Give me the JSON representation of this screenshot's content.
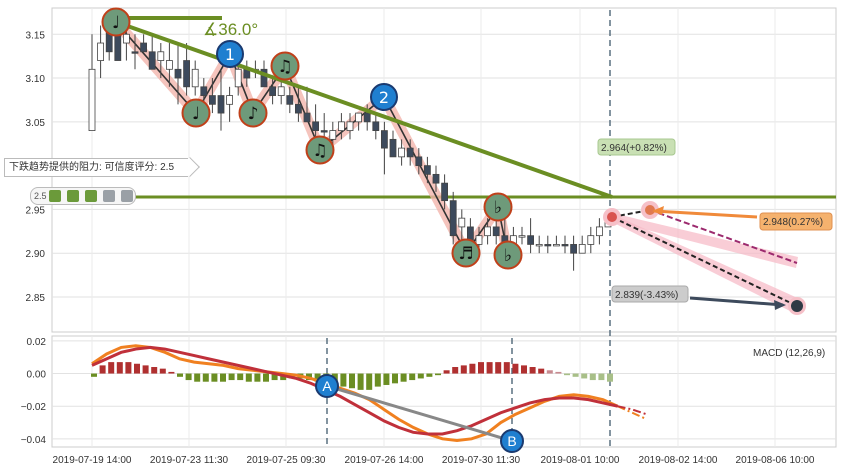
{
  "chart_data": {
    "type": "candlestick",
    "price_panel": {
      "y_ticks": [
        2.85,
        2.9,
        2.95,
        3.05,
        3.1,
        3.15
      ],
      "ylim": [
        2.81,
        3.18
      ],
      "candles": [
        {
          "o": 3.04,
          "h": 3.15,
          "l": 3.04,
          "c": 3.11,
          "bull": true
        },
        {
          "o": 3.12,
          "h": 3.16,
          "l": 3.1,
          "c": 3.14,
          "bull": true
        },
        {
          "o": 3.16,
          "h": 3.17,
          "l": 3.12,
          "c": 3.13,
          "bull": false
        },
        {
          "o": 3.15,
          "h": 3.17,
          "l": 3.12,
          "c": 3.12,
          "bull": false
        },
        {
          "o": 3.14,
          "h": 3.16,
          "l": 3.12,
          "c": 3.15,
          "bull": true
        },
        {
          "o": 3.13,
          "h": 3.15,
          "l": 3.11,
          "c": 3.13,
          "bull": false
        },
        {
          "o": 3.14,
          "h": 3.15,
          "l": 3.13,
          "c": 3.13,
          "bull": false
        },
        {
          "o": 3.13,
          "h": 3.15,
          "l": 3.11,
          "c": 3.11,
          "bull": false
        },
        {
          "o": 3.12,
          "h": 3.14,
          "l": 3.1,
          "c": 3.13,
          "bull": true
        },
        {
          "o": 3.11,
          "h": 3.14,
          "l": 3.09,
          "c": 3.12,
          "bull": true
        },
        {
          "o": 3.11,
          "h": 3.14,
          "l": 3.07,
          "c": 3.1,
          "bull": false
        },
        {
          "o": 3.12,
          "h": 3.14,
          "l": 3.08,
          "c": 3.09,
          "bull": false
        },
        {
          "o": 3.09,
          "h": 3.12,
          "l": 3.08,
          "c": 3.11,
          "bull": true
        },
        {
          "o": 3.09,
          "h": 3.1,
          "l": 3.06,
          "c": 3.08,
          "bull": false
        },
        {
          "o": 3.08,
          "h": 3.1,
          "l": 3.06,
          "c": 3.07,
          "bull": false
        },
        {
          "o": 3.08,
          "h": 3.11,
          "l": 3.04,
          "c": 3.06,
          "bull": false
        },
        {
          "o": 3.07,
          "h": 3.09,
          "l": 3.05,
          "c": 3.08,
          "bull": true
        },
        {
          "o": 3.09,
          "h": 3.12,
          "l": 3.08,
          "c": 3.11,
          "bull": true
        },
        {
          "o": 3.11,
          "h": 3.12,
          "l": 3.09,
          "c": 3.1,
          "bull": false
        },
        {
          "o": 3.11,
          "h": 3.12,
          "l": 3.1,
          "c": 3.11,
          "bull": true
        },
        {
          "o": 3.11,
          "h": 3.12,
          "l": 3.09,
          "c": 3.09,
          "bull": false
        },
        {
          "o": 3.09,
          "h": 3.1,
          "l": 3.07,
          "c": 3.08,
          "bull": false
        },
        {
          "o": 3.08,
          "h": 3.1,
          "l": 3.07,
          "c": 3.09,
          "bull": true
        },
        {
          "o": 3.08,
          "h": 3.09,
          "l": 3.06,
          "c": 3.07,
          "bull": false
        },
        {
          "o": 3.07,
          "h": 3.09,
          "l": 3.05,
          "c": 3.06,
          "bull": false
        },
        {
          "o": 3.06,
          "h": 3.09,
          "l": 3.05,
          "c": 3.05,
          "bull": false
        },
        {
          "o": 3.05,
          "h": 3.07,
          "l": 3.03,
          "c": 3.04,
          "bull": false
        },
        {
          "o": 3.04,
          "h": 3.06,
          "l": 3.03,
          "c": 3.04,
          "bull": false
        },
        {
          "o": 3.03,
          "h": 3.05,
          "l": 3.02,
          "c": 3.04,
          "bull": true
        },
        {
          "o": 3.04,
          "h": 3.06,
          "l": 3.03,
          "c": 3.05,
          "bull": true
        },
        {
          "o": 3.04,
          "h": 3.06,
          "l": 3.03,
          "c": 3.05,
          "bull": true
        },
        {
          "o": 3.05,
          "h": 3.06,
          "l": 3.04,
          "c": 3.06,
          "bull": true
        },
        {
          "o": 3.06,
          "h": 3.07,
          "l": 3.04,
          "c": 3.05,
          "bull": false
        },
        {
          "o": 3.05,
          "h": 3.06,
          "l": 3.03,
          "c": 3.04,
          "bull": false
        },
        {
          "o": 3.04,
          "h": 3.05,
          "l": 2.99,
          "c": 3.02,
          "bull": false
        },
        {
          "o": 3.03,
          "h": 3.04,
          "l": 3.01,
          "c": 3.01,
          "bull": false
        },
        {
          "o": 3.01,
          "h": 3.03,
          "l": 3.0,
          "c": 3.02,
          "bull": true
        },
        {
          "o": 3.02,
          "h": 3.03,
          "l": 3.0,
          "c": 3.01,
          "bull": false
        },
        {
          "o": 3.01,
          "h": 3.02,
          "l": 2.99,
          "c": 3.0,
          "bull": false
        },
        {
          "o": 3.0,
          "h": 3.01,
          "l": 2.98,
          "c": 2.99,
          "bull": false
        },
        {
          "o": 2.99,
          "h": 3.0,
          "l": 2.97,
          "c": 2.98,
          "bull": false
        },
        {
          "o": 2.98,
          "h": 2.99,
          "l": 2.95,
          "c": 2.96,
          "bull": false
        },
        {
          "o": 2.96,
          "h": 2.97,
          "l": 2.91,
          "c": 2.92,
          "bull": false
        },
        {
          "o": 2.93,
          "h": 2.95,
          "l": 2.91,
          "c": 2.94,
          "bull": true
        },
        {
          "o": 2.93,
          "h": 2.94,
          "l": 2.9,
          "c": 2.91,
          "bull": false
        },
        {
          "o": 2.91,
          "h": 2.93,
          "l": 2.9,
          "c": 2.92,
          "bull": true
        },
        {
          "o": 2.92,
          "h": 2.94,
          "l": 2.91,
          "c": 2.93,
          "bull": true
        },
        {
          "o": 2.93,
          "h": 2.95,
          "l": 2.91,
          "c": 2.92,
          "bull": false
        },
        {
          "o": 2.92,
          "h": 2.94,
          "l": 2.91,
          "c": 2.91,
          "bull": false
        },
        {
          "o": 2.91,
          "h": 2.93,
          "l": 2.9,
          "c": 2.92,
          "bull": true
        },
        {
          "o": 2.92,
          "h": 2.93,
          "l": 2.91,
          "c": 2.92,
          "bull": true
        },
        {
          "o": 2.92,
          "h": 2.94,
          "l": 2.9,
          "c": 2.91,
          "bull": false
        },
        {
          "o": 2.91,
          "h": 2.92,
          "l": 2.9,
          "c": 2.91,
          "bull": true
        },
        {
          "o": 2.91,
          "h": 2.92,
          "l": 2.9,
          "c": 2.91,
          "bull": false
        },
        {
          "o": 2.91,
          "h": 2.92,
          "l": 2.91,
          "c": 2.91,
          "bull": true
        },
        {
          "o": 2.91,
          "h": 2.92,
          "l": 2.9,
          "c": 2.91,
          "bull": false
        },
        {
          "o": 2.91,
          "h": 2.92,
          "l": 2.88,
          "c": 2.9,
          "bull": false
        },
        {
          "o": 2.9,
          "h": 2.92,
          "l": 2.9,
          "c": 2.91,
          "bull": true
        },
        {
          "o": 2.91,
          "h": 2.93,
          "l": 2.9,
          "c": 2.92,
          "bull": true
        },
        {
          "o": 2.92,
          "h": 2.94,
          "l": 2.91,
          "c": 2.93,
          "bull": true
        },
        {
          "o": 2.93,
          "h": 2.95,
          "l": 2.93,
          "c": 2.94,
          "bull": true
        }
      ],
      "horizontal_level": 2.96,
      "resistance_note": "下跌趋势提供的阻力: 可信度评分: 2.5",
      "score_strip_label": "2.5",
      "angle_label": "∡36.0°",
      "callouts": [
        {
          "text": "2.964(+0.82%)",
          "bg": "#c9e0b4"
        },
        {
          "text": "2.948(0.27%)",
          "bg": "#f5b26e"
        },
        {
          "text": "2.839(-3.43%)",
          "bg": "#cccccc"
        }
      ],
      "markers": [
        {
          "label": "1",
          "kind": "number"
        },
        {
          "label": "2",
          "kind": "number"
        },
        {
          "label": "♩",
          "kind": "note"
        },
        {
          "label": "♩",
          "kind": "note"
        },
        {
          "label": "♪",
          "kind": "note"
        },
        {
          "label": "♫",
          "kind": "note"
        },
        {
          "label": "♫",
          "kind": "note"
        },
        {
          "label": "♬",
          "kind": "note"
        },
        {
          "label": "♭",
          "kind": "note"
        },
        {
          "label": "♭",
          "kind": "note"
        }
      ]
    },
    "macd_panel": {
      "legend": "MACD (12,26,9)",
      "y_ticks": [
        "0.02",
        "0.00",
        "−0.02",
        "−0.04"
      ],
      "y_tick_values": [
        0.02,
        0.0,
        -0.02,
        -0.04
      ],
      "ylim": [
        -0.045,
        0.023
      ],
      "histogram": [
        -0.002,
        0.005,
        0.007,
        0.007,
        0.007,
        0.006,
        0.005,
        0.004,
        0.003,
        0.001,
        -0.002,
        -0.004,
        -0.005,
        -0.005,
        -0.005,
        -0.005,
        -0.004,
        -0.004,
        -0.005,
        -0.005,
        -0.005,
        -0.004,
        -0.004,
        -0.003,
        -0.003,
        -0.004,
        -0.005,
        -0.006,
        -0.007,
        -0.008,
        -0.009,
        -0.01,
        -0.01,
        -0.008,
        -0.007,
        -0.006,
        -0.005,
        -0.004,
        -0.003,
        -0.002,
        -0.001,
        0.002,
        0.004,
        0.005,
        0.006,
        0.007,
        0.007,
        0.007,
        0.007,
        0.006,
        0.005,
        0.004,
        0.003,
        0.002,
        0.001,
        -0.001,
        -0.002,
        -0.003,
        -0.004,
        -0.004,
        -0.005
      ],
      "histogram_future_from": 53,
      "macd_line": [
        0.006,
        0.012,
        0.016,
        0.017,
        0.016,
        0.013,
        0.009,
        0.007,
        0.006,
        0.005,
        0.003,
        0.002,
        0.001,
        0.0,
        -0.001,
        -0.003,
        -0.006,
        -0.009,
        -0.012,
        -0.016,
        -0.022,
        -0.028,
        -0.033,
        -0.037,
        -0.04,
        -0.041,
        -0.04,
        -0.037,
        -0.03,
        -0.025,
        -0.021,
        -0.017,
        -0.014,
        -0.013,
        -0.014,
        -0.016,
        -0.02,
        -0.024,
        -0.028
      ],
      "signal_line": [
        0.005,
        0.009,
        0.013,
        0.015,
        0.016,
        0.015,
        0.013,
        0.011,
        0.009,
        0.007,
        0.005,
        0.003,
        0.001,
        -0.001,
        -0.003,
        -0.006,
        -0.01,
        -0.014,
        -0.019,
        -0.024,
        -0.029,
        -0.033,
        -0.036,
        -0.037,
        -0.037,
        -0.035,
        -0.032,
        -0.028,
        -0.024,
        -0.021,
        -0.018,
        -0.016,
        -0.015,
        -0.015,
        -0.016,
        -0.018,
        -0.02,
        -0.022,
        -0.025
      ],
      "divergence_labels": [
        "A",
        "B"
      ]
    },
    "x_ticks": [
      "2019-07-19 14:00",
      "2019-07-23 11:30",
      "2019-07-25 09:30",
      "2019-07-26 14:00",
      "2019-07-30 11:30",
      "2019-08-01 10:00",
      "2019-08-02 14:00",
      "2019-08-06 10:00"
    ],
    "colors": {
      "bull": "#ffffff",
      "bear": "#3d4a5c",
      "trend": "#6b8e23",
      "zigzag": "#f0a8a0",
      "macd": "#f08020",
      "signal": "#c0303a",
      "hist_pos": "#b03030",
      "hist_neg": "#6b8e23"
    }
  }
}
